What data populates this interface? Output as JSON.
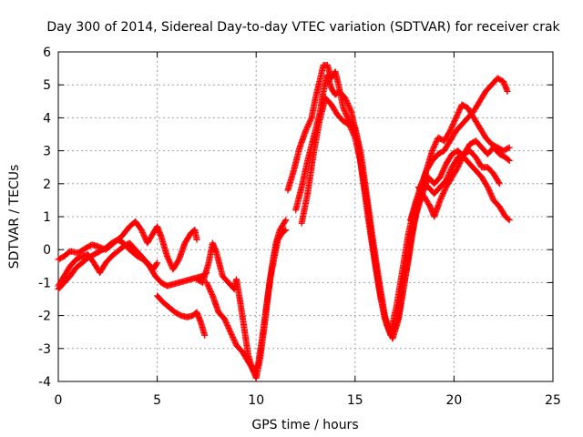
{
  "chart_data": {
    "type": "scatter",
    "title": "Day 300 of 2014, Sidereal Day-to-day VTEC variation (SDTVAR) for receiver crak",
    "xlabel": "GPS time / hours",
    "ylabel": "SDTVAR / TECUs",
    "xlim": [
      0,
      25
    ],
    "ylim": [
      -4,
      6
    ],
    "xticks": [
      "0",
      "5",
      "10",
      "15",
      "20",
      "25"
    ],
    "yticks": [
      "-4",
      "-3",
      "-2",
      "-1",
      "0",
      "1",
      "2",
      "3",
      "4",
      "5",
      "6"
    ],
    "grid": true,
    "marker": "+",
    "color": "#ff0000",
    "series": [
      {
        "points": [
          [
            0.0,
            -0.3
          ],
          [
            0.3,
            -0.2
          ],
          [
            0.6,
            -0.05
          ],
          [
            1.0,
            -0.1
          ],
          [
            1.4,
            0.05
          ],
          [
            1.7,
            0.15
          ],
          [
            2.0,
            0.1
          ],
          [
            2.4,
            0.0
          ],
          [
            2.8,
            0.2
          ],
          [
            3.2,
            0.4
          ],
          [
            3.6,
            0.7
          ],
          [
            3.9,
            0.85
          ],
          [
            4.2,
            0.6
          ],
          [
            4.5,
            0.2
          ],
          [
            4.8,
            0.5
          ],
          [
            5.0,
            0.7
          ],
          [
            5.2,
            0.4
          ],
          [
            5.5,
            -0.2
          ],
          [
            5.8,
            -0.6
          ],
          [
            6.1,
            -0.3
          ],
          [
            6.4,
            0.2
          ],
          [
            6.7,
            0.5
          ],
          [
            6.9,
            0.6
          ],
          [
            7.0,
            0.3
          ]
        ]
      },
      {
        "points": [
          [
            0.0,
            -1.2
          ],
          [
            0.3,
            -1.0
          ],
          [
            0.6,
            -0.8
          ],
          [
            0.9,
            -0.55
          ],
          [
            1.2,
            -0.4
          ],
          [
            1.5,
            -0.25
          ],
          [
            1.8,
            -0.15
          ],
          [
            2.1,
            -0.05
          ],
          [
            2.4,
            0.05
          ],
          [
            2.7,
            0.2
          ],
          [
            3.0,
            0.3
          ],
          [
            3.3,
            0.2
          ],
          [
            3.6,
            0.0
          ],
          [
            4.0,
            -0.2
          ],
          [
            4.3,
            -0.3
          ],
          [
            4.6,
            -0.5
          ],
          [
            4.9,
            -0.8
          ],
          [
            5.2,
            -1.0
          ],
          [
            5.5,
            -1.1
          ],
          [
            5.8,
            -1.05
          ],
          [
            6.1,
            -1.0
          ],
          [
            6.4,
            -0.95
          ],
          [
            6.7,
            -0.9
          ],
          [
            7.0,
            -0.85
          ],
          [
            7.3,
            -0.8
          ],
          [
            7.5,
            -0.7
          ]
        ]
      },
      {
        "points": [
          [
            0.0,
            -1.1
          ],
          [
            0.3,
            -0.8
          ],
          [
            0.6,
            -0.5
          ],
          [
            0.9,
            -0.3
          ],
          [
            1.2,
            -0.2
          ],
          [
            1.5,
            -0.15
          ],
          [
            1.8,
            -0.4
          ],
          [
            2.1,
            -0.7
          ],
          [
            2.4,
            -0.4
          ],
          [
            2.7,
            -0.2
          ],
          [
            3.0,
            -0.05
          ],
          [
            3.3,
            0.1
          ],
          [
            3.6,
            0.2
          ],
          [
            3.9,
            0.0
          ],
          [
            4.2,
            -0.2
          ],
          [
            4.5,
            -0.4
          ],
          [
            4.8,
            -0.6
          ],
          [
            5.0,
            -0.4
          ]
        ]
      },
      {
        "points": [
          [
            5.0,
            -1.4
          ],
          [
            5.3,
            -1.6
          ],
          [
            5.6,
            -1.75
          ],
          [
            5.9,
            -1.9
          ],
          [
            6.2,
            -2.0
          ],
          [
            6.5,
            -2.05
          ],
          [
            6.8,
            -2.0
          ],
          [
            7.0,
            -1.9
          ],
          [
            7.2,
            -2.2
          ],
          [
            7.4,
            -2.6
          ]
        ]
      },
      {
        "points": [
          [
            7.0,
            -0.9
          ],
          [
            7.3,
            -1.0
          ],
          [
            7.6,
            -0.4
          ],
          [
            7.8,
            0.2
          ],
          [
            8.0,
            -0.1
          ],
          [
            8.3,
            -0.8
          ],
          [
            8.6,
            -1.0
          ],
          [
            8.9,
            -1.2
          ],
          [
            9.0,
            -0.9
          ],
          [
            9.2,
            -1.6
          ],
          [
            9.4,
            -2.4
          ],
          [
            9.6,
            -3.2
          ],
          [
            9.8,
            -3.6
          ],
          [
            10.0,
            -3.9
          ],
          [
            10.2,
            -3.3
          ],
          [
            10.4,
            -2.4
          ],
          [
            10.6,
            -1.4
          ],
          [
            10.8,
            -0.5
          ],
          [
            11.0,
            0.2
          ],
          [
            11.2,
            0.6
          ],
          [
            11.5,
            0.9
          ]
        ]
      },
      {
        "points": [
          [
            7.5,
            -1.0
          ],
          [
            7.8,
            -1.4
          ],
          [
            8.1,
            -1.9
          ],
          [
            8.4,
            -2.1
          ],
          [
            8.7,
            -2.5
          ],
          [
            9.0,
            -2.9
          ],
          [
            9.3,
            -3.1
          ],
          [
            9.6,
            -3.4
          ],
          [
            9.9,
            -3.7
          ],
          [
            10.1,
            -3.5
          ],
          [
            10.3,
            -2.7
          ],
          [
            10.5,
            -1.8
          ],
          [
            10.7,
            -0.9
          ],
          [
            10.9,
            -0.3
          ],
          [
            11.1,
            0.3
          ],
          [
            11.3,
            0.5
          ],
          [
            11.5,
            0.6
          ]
        ]
      },
      {
        "points": [
          [
            11.6,
            1.8
          ],
          [
            11.9,
            2.4
          ],
          [
            12.2,
            3.1
          ],
          [
            12.5,
            3.6
          ],
          [
            12.8,
            4.0
          ],
          [
            13.0,
            4.6
          ],
          [
            13.2,
            5.1
          ],
          [
            13.4,
            5.6
          ],
          [
            13.6,
            5.6
          ],
          [
            13.8,
            5.2
          ],
          [
            14.0,
            5.4
          ],
          [
            14.2,
            4.9
          ],
          [
            14.4,
            4.3
          ],
          [
            14.7,
            3.9
          ],
          [
            15.0,
            3.7
          ],
          [
            15.3,
            2.9
          ],
          [
            15.6,
            1.6
          ],
          [
            15.9,
            0.3
          ],
          [
            16.2,
            -0.9
          ],
          [
            16.5,
            -2.0
          ],
          [
            16.8,
            -2.6
          ],
          [
            17.1,
            -2.3
          ],
          [
            17.4,
            -1.3
          ],
          [
            17.7,
            -0.3
          ],
          [
            18.0,
            0.9
          ],
          [
            18.3,
            1.6
          ],
          [
            18.6,
            2.4
          ],
          [
            18.9,
            3.0
          ],
          [
            19.2,
            3.4
          ],
          [
            19.5,
            3.3
          ],
          [
            19.8,
            3.6
          ],
          [
            20.1,
            4.0
          ],
          [
            20.4,
            4.4
          ],
          [
            20.7,
            4.3
          ],
          [
            21.0,
            4.0
          ],
          [
            21.3,
            3.7
          ],
          [
            21.6,
            3.4
          ],
          [
            21.9,
            3.2
          ],
          [
            22.2,
            3.1
          ],
          [
            22.5,
            3.0
          ],
          [
            22.8,
            3.1
          ]
        ]
      },
      {
        "points": [
          [
            12.0,
            1.2
          ],
          [
            12.3,
            1.9
          ],
          [
            12.6,
            2.7
          ],
          [
            12.9,
            3.4
          ],
          [
            13.2,
            4.1
          ],
          [
            13.4,
            4.8
          ],
          [
            13.6,
            5.3
          ],
          [
            13.8,
            4.9
          ],
          [
            14.0,
            4.7
          ],
          [
            14.2,
            4.8
          ],
          [
            14.5,
            4.6
          ],
          [
            14.8,
            4.2
          ],
          [
            15.1,
            3.4
          ],
          [
            15.4,
            2.1
          ],
          [
            15.7,
            0.8
          ],
          [
            16.0,
            -0.4
          ],
          [
            16.3,
            -1.5
          ],
          [
            16.6,
            -2.3
          ],
          [
            16.9,
            -2.7
          ],
          [
            17.2,
            -2.1
          ],
          [
            17.5,
            -1.0
          ],
          [
            17.8,
            0.2
          ],
          [
            18.1,
            1.1
          ],
          [
            18.4,
            1.7
          ],
          [
            18.7,
            2.2
          ],
          [
            19.0,
            2.0
          ],
          [
            19.3,
            2.2
          ],
          [
            19.6,
            2.6
          ],
          [
            19.9,
            2.9
          ],
          [
            20.2,
            3.0
          ],
          [
            20.5,
            2.8
          ],
          [
            20.8,
            2.6
          ],
          [
            21.1,
            2.4
          ],
          [
            21.4,
            2.2
          ],
          [
            21.7,
            1.9
          ],
          [
            22.0,
            1.5
          ],
          [
            22.3,
            1.3
          ],
          [
            22.6,
            1.0
          ],
          [
            22.8,
            0.9
          ]
        ]
      },
      {
        "points": [
          [
            12.3,
            0.8
          ],
          [
            12.6,
            1.7
          ],
          [
            12.9,
            2.9
          ],
          [
            13.2,
            3.9
          ],
          [
            13.5,
            4.6
          ],
          [
            13.8,
            4.4
          ],
          [
            14.1,
            4.1
          ],
          [
            14.4,
            3.9
          ],
          [
            14.7,
            3.8
          ],
          [
            15.0,
            3.4
          ],
          [
            15.3,
            2.6
          ],
          [
            15.6,
            1.4
          ],
          [
            15.9,
            0.1
          ],
          [
            16.2,
            -1.1
          ],
          [
            16.5,
            -2.1
          ],
          [
            16.8,
            -2.5
          ],
          [
            17.1,
            -1.7
          ],
          [
            17.4,
            -0.6
          ],
          [
            17.7,
            0.5
          ],
          [
            18.0,
            1.3
          ],
          [
            18.3,
            1.9
          ],
          [
            18.6,
            2.4
          ],
          [
            18.9,
            2.7
          ],
          [
            19.2,
            2.9
          ],
          [
            19.5,
            3.0
          ],
          [
            19.8,
            3.3
          ],
          [
            20.1,
            3.6
          ],
          [
            20.4,
            3.8
          ],
          [
            20.7,
            4.0
          ],
          [
            21.0,
            4.2
          ],
          [
            21.3,
            4.5
          ],
          [
            21.6,
            4.8
          ],
          [
            21.9,
            5.0
          ],
          [
            22.2,
            5.2
          ],
          [
            22.5,
            5.1
          ],
          [
            22.7,
            4.8
          ]
        ]
      },
      {
        "points": [
          [
            17.8,
            0.9
          ],
          [
            18.1,
            1.5
          ],
          [
            18.4,
            1.9
          ],
          [
            18.7,
            1.9
          ],
          [
            19.0,
            1.7
          ],
          [
            19.3,
            1.9
          ],
          [
            19.6,
            2.1
          ],
          [
            19.9,
            2.5
          ],
          [
            20.2,
            2.8
          ],
          [
            20.5,
            2.9
          ],
          [
            20.8,
            3.0
          ],
          [
            21.1,
            2.8
          ],
          [
            21.4,
            2.5
          ],
          [
            21.7,
            2.5
          ],
          [
            22.0,
            2.3
          ],
          [
            22.3,
            2.0
          ]
        ]
      },
      {
        "points": [
          [
            18.2,
            1.9
          ],
          [
            18.5,
            1.6
          ],
          [
            18.8,
            1.3
          ],
          [
            19.0,
            1.0
          ],
          [
            19.3,
            1.5
          ],
          [
            19.6,
            1.9
          ],
          [
            19.9,
            2.2
          ],
          [
            20.2,
            2.5
          ],
          [
            20.5,
            2.9
          ],
          [
            20.8,
            3.2
          ],
          [
            21.1,
            3.3
          ],
          [
            21.4,
            3.1
          ],
          [
            21.7,
            2.9
          ],
          [
            22.0,
            3.1
          ],
          [
            22.3,
            2.9
          ],
          [
            22.6,
            2.8
          ],
          [
            22.8,
            2.7
          ]
        ]
      }
    ]
  }
}
